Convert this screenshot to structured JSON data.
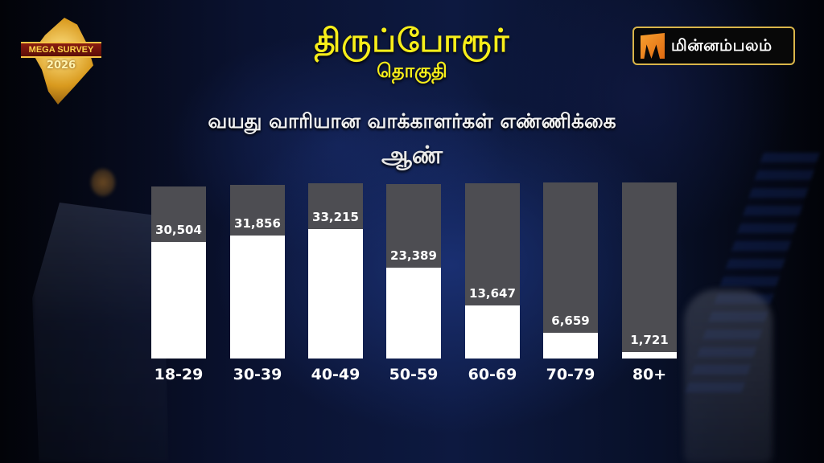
{
  "header": {
    "title": "திருப்போரூர்",
    "subtitle": "தொகுதி",
    "heading": "வயது வாரியான வாக்காளர்கள் எண்ணிக்கை",
    "gender": "ஆண்"
  },
  "badge": {
    "banner": "MEGA SURVEY",
    "year": "2026"
  },
  "brand": {
    "name": "மின்னம்பலம்",
    "accent": "#f7a030",
    "border": "#d9b54a"
  },
  "colors": {
    "title": "#f7ee1a",
    "bar_track": "#4d4d52",
    "bar_fill": "#ffffff"
  },
  "chart_data": {
    "type": "bar",
    "title": "வயது வாரியான வாக்காளர்கள் எண்ணிக்கை",
    "subtitle": "ஆண்",
    "categories": [
      "18-29",
      "30-39",
      "40-49",
      "50-59",
      "60-69",
      "70-79",
      "80+"
    ],
    "values": [
      30504,
      31856,
      33215,
      23389,
      13647,
      6659,
      1721
    ],
    "value_labels": [
      "30,504",
      "31,856",
      "33,215",
      "23,389",
      "13,647",
      "6,659",
      "1,721"
    ],
    "xlabel": "",
    "ylabel": "",
    "ylim": [
      0,
      45000
    ],
    "grid": false,
    "legend": "none"
  }
}
